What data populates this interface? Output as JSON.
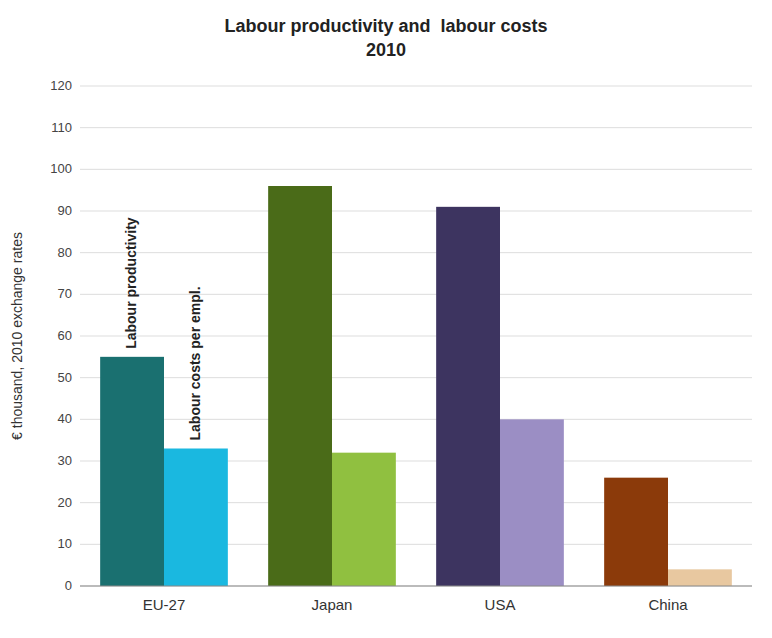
{
  "chart_data": {
    "type": "bar",
    "title": "Labour productivity and  labour costs",
    "subtitle": "2010",
    "y_label": "€ thousand, 2010 exchange rates",
    "categories": [
      "EU-27",
      "Japan",
      "USA",
      "China"
    ],
    "series": [
      {
        "name": "Labour productivity",
        "colors": [
          "#1a7070",
          "#4a6b18",
          "#3d3460",
          "#8b3a0a"
        ],
        "values": [
          55,
          96,
          91,
          26
        ]
      },
      {
        "name": "Labour costs per empl.",
        "colors": [
          "#1ab8e0",
          "#90c040",
          "#9b8ec4",
          "#e8c8a0"
        ],
        "values": [
          33,
          32,
          40,
          4
        ]
      }
    ],
    "ylim": [
      0,
      120
    ],
    "yticks": [
      0,
      10,
      20,
      30,
      40,
      50,
      60,
      70,
      80,
      90,
      100,
      110,
      120
    ],
    "grid": true
  }
}
